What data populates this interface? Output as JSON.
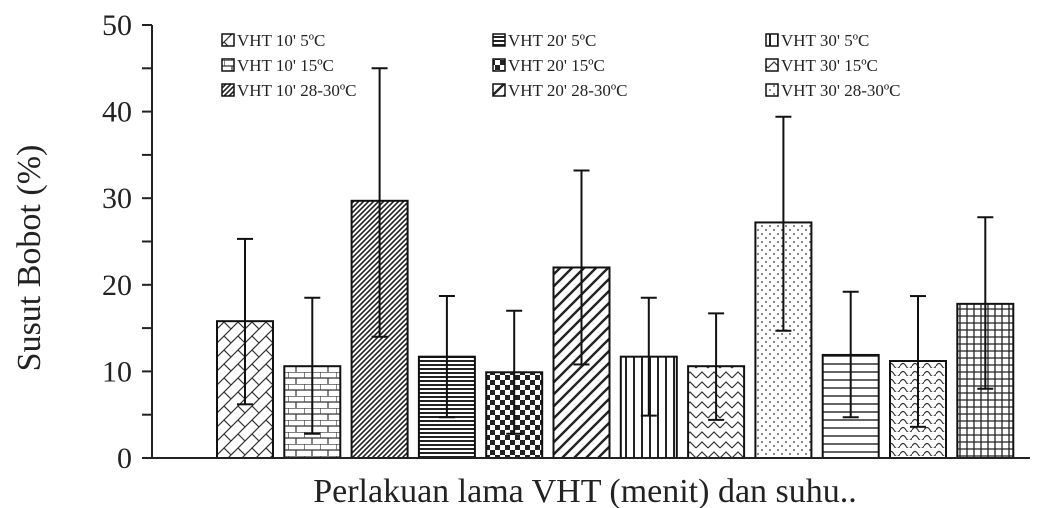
{
  "chart_data": {
    "type": "bar",
    "title": "",
    "ylabel": "Susut Bobot (%)",
    "xlabel": "Perlakuan lama VHT (menit) dan suhu..",
    "ylim": [
      0,
      50
    ],
    "yticks": [
      0,
      10,
      20,
      30,
      40,
      50
    ],
    "grid": false,
    "legend_position": "top",
    "error_bars": true,
    "series": [
      {
        "name": "VHT 10' 5ºC",
        "value": 15.8,
        "error_low": 6.2,
        "error_high": 25.3,
        "pattern": "diag-weave"
      },
      {
        "name": "VHT 10' 15ºC",
        "value": 10.6,
        "error_low": 2.8,
        "error_high": 18.5,
        "pattern": "bricks"
      },
      {
        "name": "VHT 10' 28-30ºC",
        "value": 29.7,
        "error_low": 14.0,
        "error_high": 45.0,
        "pattern": "dense-diagonal"
      },
      {
        "name": "VHT 20' 5ºC",
        "value": 11.7,
        "error_low": 4.7,
        "error_high": 18.7,
        "pattern": "horizontal-dense"
      },
      {
        "name": "VHT 20' 15ºC",
        "value": 9.9,
        "error_low": 2.8,
        "error_high": 17.0,
        "pattern": "checker"
      },
      {
        "name": "VHT 20' 28-30ºC",
        "value": 22.0,
        "error_low": 10.8,
        "error_high": 33.2,
        "pattern": "wide-diagonal"
      },
      {
        "name": "VHT 30' 5ºC",
        "value": 11.7,
        "error_low": 4.9,
        "error_high": 18.5,
        "pattern": "vertical"
      },
      {
        "name": "VHT 30' 15ºC",
        "value": 10.6,
        "error_low": 4.4,
        "error_high": 16.7,
        "pattern": "zigzag"
      },
      {
        "name": "VHT 30' 28-30ºC",
        "value": 27.2,
        "error_low": 14.7,
        "error_high": 39.4,
        "pattern": "dots"
      },
      {
        "name": "",
        "value": 11.9,
        "error_low": 4.7,
        "error_high": 19.2,
        "pattern": "horizontal-sparse"
      },
      {
        "name": "",
        "value": 11.2,
        "error_low": 3.6,
        "error_high": 18.7,
        "pattern": "wave"
      },
      {
        "name": "",
        "value": 17.8,
        "error_low": 8.0,
        "error_high": 27.8,
        "pattern": "grid"
      }
    ],
    "legend": [
      {
        "label": "VHT 10' 5ºC",
        "pattern": "diag-weave"
      },
      {
        "label": "VHT 10' 15ºC",
        "pattern": "bricks"
      },
      {
        "label": "VHT 10' 28-30ºC",
        "pattern": "dense-diagonal"
      },
      {
        "label": "VHT 20' 5ºC",
        "pattern": "horizontal-dense"
      },
      {
        "label": "VHT 20' 15ºC",
        "pattern": "checker"
      },
      {
        "label": "VHT 20' 28-30ºC",
        "pattern": "wide-diagonal"
      },
      {
        "label": "VHT 30' 5ºC",
        "pattern": "vertical"
      },
      {
        "label": "VHT 30' 15ºC",
        "pattern": "zigzag"
      },
      {
        "label": "VHT 30' 28-30ºC",
        "pattern": "dots"
      }
    ]
  }
}
